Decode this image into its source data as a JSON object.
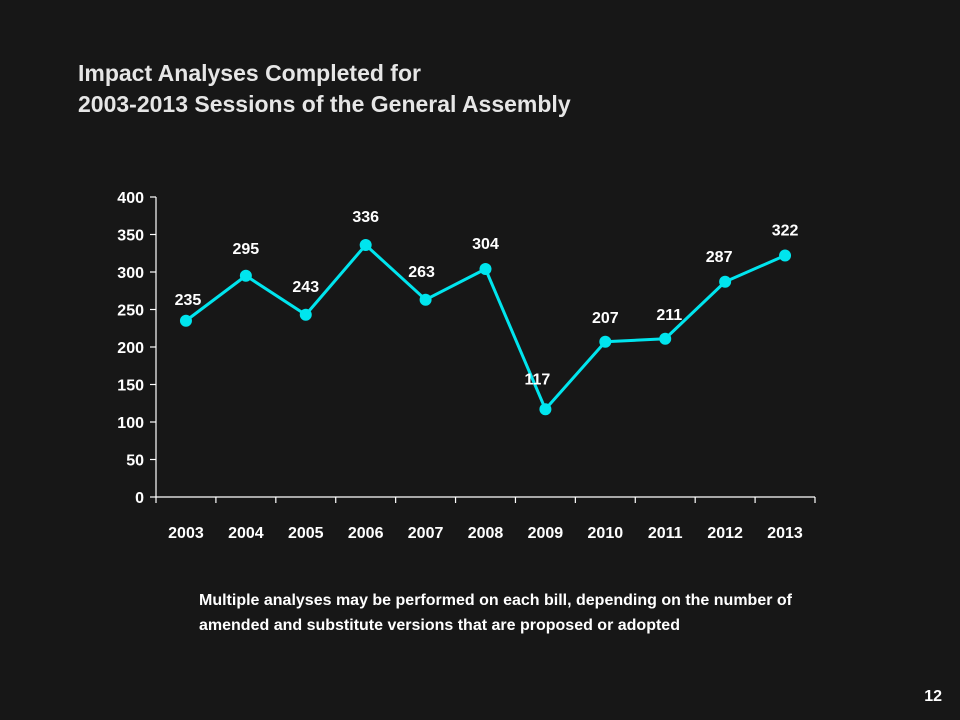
{
  "slide": {
    "title_line1": "Impact Analyses Completed for",
    "title_line2": "2003-2013 Sessions of the General Assembly",
    "note": "Multiple analyses may be performed on each bill, depending on the number of amended and substitute versions that are proposed or adopted",
    "page_number": "12"
  },
  "colors": {
    "background": "#171717",
    "line": "#00e5ee",
    "text": "#ffffff",
    "axis": "#ffffff"
  },
  "chart_data": {
    "type": "line",
    "title": "",
    "xlabel": "",
    "ylabel": "",
    "categories": [
      "2003",
      "2004",
      "2005",
      "2006",
      "2007",
      "2008",
      "2009",
      "2010",
      "2011",
      "2012",
      "2013"
    ],
    "values": [
      235,
      295,
      243,
      336,
      263,
      304,
      117,
      207,
      211,
      287,
      322
    ],
    "ylim": [
      0,
      400
    ],
    "yticks": [
      0,
      50,
      100,
      150,
      200,
      250,
      300,
      350,
      400
    ],
    "grid": false,
    "legend": "none",
    "data_labels": true
  }
}
